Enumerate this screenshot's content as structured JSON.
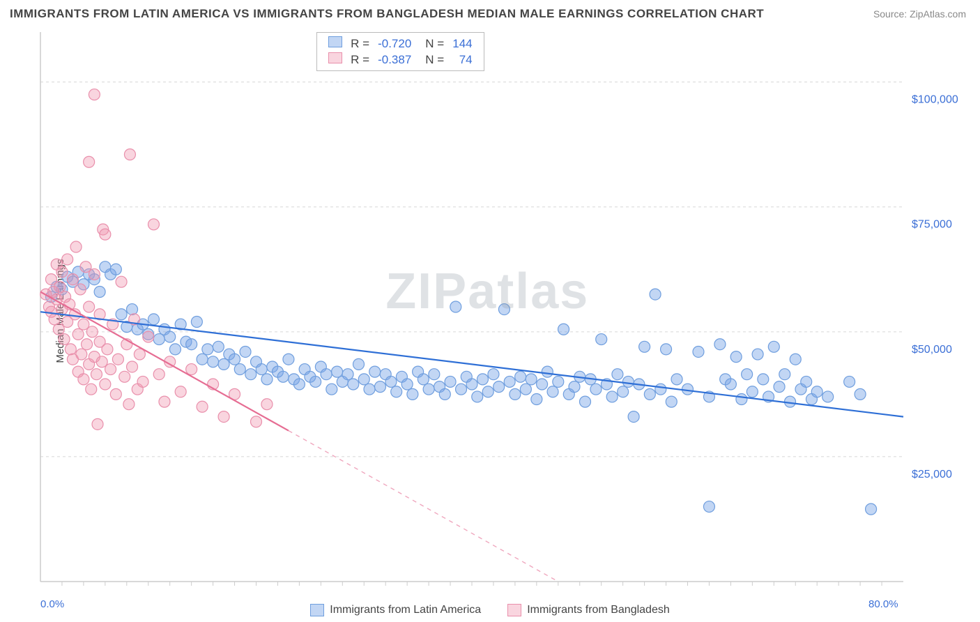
{
  "title": "IMMIGRANTS FROM LATIN AMERICA VS IMMIGRANTS FROM BANGLADESH MEDIAN MALE EARNINGS CORRELATION CHART",
  "source_prefix": "Source: ",
  "source_name": "ZipAtlas.com",
  "y_axis_label": "Median Male Earnings",
  "watermark_a": "ZIP",
  "watermark_b": "atlas",
  "chart": {
    "type": "scatter",
    "xlim": [
      0,
      80
    ],
    "ylim": [
      0,
      110000
    ],
    "x_ticks_minor": [
      2,
      4,
      6,
      8,
      10,
      12,
      14,
      16,
      18,
      20,
      22,
      24,
      26,
      28,
      30,
      32,
      34,
      36,
      38,
      40,
      42,
      44,
      46,
      48,
      50,
      52,
      54,
      56,
      58,
      60,
      62,
      64,
      66,
      68,
      70,
      72,
      74,
      76,
      78
    ],
    "x_tick_labels": [
      {
        "pos": 0,
        "label": "0.0%"
      },
      {
        "pos": 80,
        "label": "80.0%"
      }
    ],
    "y_gridlines": [
      25000,
      50000,
      75000,
      100000
    ],
    "y_tick_labels": [
      {
        "pos": 25000,
        "label": "$25,000"
      },
      {
        "pos": 50000,
        "label": "$50,000"
      },
      {
        "pos": 75000,
        "label": "$75,000"
      },
      {
        "pos": 100000,
        "label": "$100,000"
      }
    ],
    "background_color": "#ffffff",
    "grid_color": "#d8d8d8",
    "axis_color": "#cccccc",
    "tick_label_color": "#3b6fd6",
    "marker_radius": 8,
    "marker_stroke_width": 1.2,
    "series": [
      {
        "name": "Immigrants from Latin America",
        "fill": "rgba(120,165,230,0.45)",
        "stroke": "#6f9ede",
        "line_color": "#2e6fd6",
        "regression": {
          "x1": 0,
          "y1": 54000,
          "x2": 80,
          "y2": 33000,
          "solid_to_x": 80
        },
        "points": [
          [
            1,
            57000
          ],
          [
            1.5,
            59000
          ],
          [
            2,
            58500
          ],
          [
            2.5,
            61000
          ],
          [
            3,
            60000
          ],
          [
            3.5,
            62000
          ],
          [
            4,
            59500
          ],
          [
            4.5,
            61500
          ],
          [
            5,
            60500
          ],
          [
            5.5,
            58000
          ],
          [
            6,
            63000
          ],
          [
            6.5,
            61500
          ],
          [
            7,
            62500
          ],
          [
            7.5,
            53500
          ],
          [
            8,
            51000
          ],
          [
            8.5,
            54500
          ],
          [
            9,
            50500
          ],
          [
            9.5,
            51500
          ],
          [
            10,
            49500
          ],
          [
            10.5,
            52500
          ],
          [
            11,
            48500
          ],
          [
            11.5,
            50500
          ],
          [
            12,
            49000
          ],
          [
            12.5,
            46500
          ],
          [
            13,
            51500
          ],
          [
            13.5,
            48000
          ],
          [
            14,
            47500
          ],
          [
            14.5,
            52000
          ],
          [
            15,
            44500
          ],
          [
            15.5,
            46500
          ],
          [
            16,
            44000
          ],
          [
            16.5,
            47000
          ],
          [
            17,
            43500
          ],
          [
            17.5,
            45500
          ],
          [
            18,
            44500
          ],
          [
            18.5,
            42500
          ],
          [
            19,
            46000
          ],
          [
            19.5,
            41500
          ],
          [
            20,
            44000
          ],
          [
            20.5,
            42500
          ],
          [
            21,
            40500
          ],
          [
            21.5,
            43000
          ],
          [
            22,
            42000
          ],
          [
            22.5,
            41000
          ],
          [
            23,
            44500
          ],
          [
            23.5,
            40500
          ],
          [
            24,
            39500
          ],
          [
            24.5,
            42500
          ],
          [
            25,
            41000
          ],
          [
            25.5,
            40000
          ],
          [
            26,
            43000
          ],
          [
            26.5,
            41500
          ],
          [
            27,
            38500
          ],
          [
            27.5,
            42000
          ],
          [
            28,
            40000
          ],
          [
            28.5,
            41500
          ],
          [
            29,
            39500
          ],
          [
            29.5,
            43500
          ],
          [
            30,
            40500
          ],
          [
            30.5,
            38500
          ],
          [
            31,
            42000
          ],
          [
            31.5,
            39000
          ],
          [
            32,
            41500
          ],
          [
            32.5,
            40000
          ],
          [
            33,
            38000
          ],
          [
            33.5,
            41000
          ],
          [
            34,
            39500
          ],
          [
            34.5,
            37500
          ],
          [
            35,
            42000
          ],
          [
            35.5,
            40500
          ],
          [
            36,
            38500
          ],
          [
            36.5,
            41500
          ],
          [
            37,
            39000
          ],
          [
            37.5,
            37500
          ],
          [
            38,
            40000
          ],
          [
            38.5,
            55000
          ],
          [
            39,
            38500
          ],
          [
            39.5,
            41000
          ],
          [
            40,
            39500
          ],
          [
            40.5,
            37000
          ],
          [
            41,
            40500
          ],
          [
            41.5,
            38000
          ],
          [
            42,
            41500
          ],
          [
            42.5,
            39000
          ],
          [
            43,
            54500
          ],
          [
            43.5,
            40000
          ],
          [
            44,
            37500
          ],
          [
            44.5,
            41000
          ],
          [
            45,
            38500
          ],
          [
            45.5,
            40500
          ],
          [
            46,
            36500
          ],
          [
            46.5,
            39500
          ],
          [
            47,
            42000
          ],
          [
            47.5,
            38000
          ],
          [
            48,
            40000
          ],
          [
            48.5,
            50500
          ],
          [
            49,
            37500
          ],
          [
            49.5,
            39000
          ],
          [
            50,
            41000
          ],
          [
            50.5,
            36000
          ],
          [
            51,
            40500
          ],
          [
            51.5,
            38500
          ],
          [
            52,
            48500
          ],
          [
            52.5,
            39500
          ],
          [
            53,
            37000
          ],
          [
            53.5,
            41500
          ],
          [
            54,
            38000
          ],
          [
            54.5,
            40000
          ],
          [
            55,
            33000
          ],
          [
            55.5,
            39500
          ],
          [
            56,
            47000
          ],
          [
            56.5,
            37500
          ],
          [
            57,
            57500
          ],
          [
            57.5,
            38500
          ],
          [
            58,
            46500
          ],
          [
            58.5,
            36000
          ],
          [
            59,
            40500
          ],
          [
            60,
            38500
          ],
          [
            61,
            46000
          ],
          [
            62,
            37000
          ],
          [
            63,
            47500
          ],
          [
            63.5,
            40500
          ],
          [
            64,
            39500
          ],
          [
            64.5,
            45000
          ],
          [
            65,
            36500
          ],
          [
            65.5,
            41500
          ],
          [
            66,
            38000
          ],
          [
            66.5,
            45500
          ],
          [
            67,
            40500
          ],
          [
            67.5,
            37000
          ],
          [
            68,
            47000
          ],
          [
            68.5,
            39000
          ],
          [
            69,
            41500
          ],
          [
            69.5,
            36000
          ],
          [
            70,
            44500
          ],
          [
            70.5,
            38500
          ],
          [
            71,
            40000
          ],
          [
            71.5,
            36500
          ],
          [
            72,
            38000
          ],
          [
            73,
            37000
          ],
          [
            62,
            15000
          ],
          [
            77,
            14500
          ],
          [
            75,
            40000
          ],
          [
            76,
            37500
          ]
        ]
      },
      {
        "name": "Immigrants from Bangladesh",
        "fill": "rgba(240,150,175,0.40)",
        "stroke": "#e98fab",
        "line_color": "#e66d93",
        "regression": {
          "x1": 0,
          "y1": 58000,
          "x2": 48,
          "y2": 0,
          "solid_to_x": 23
        },
        "points": [
          [
            0.5,
            57500
          ],
          [
            0.8,
            55000
          ],
          [
            1,
            60500
          ],
          [
            1,
            54000
          ],
          [
            1.2,
            58000
          ],
          [
            1.3,
            52500
          ],
          [
            1.5,
            63500
          ],
          [
            1.5,
            56500
          ],
          [
            1.7,
            50500
          ],
          [
            1.8,
            59000
          ],
          [
            2,
            54500
          ],
          [
            2,
            62000
          ],
          [
            2.2,
            48500
          ],
          [
            2.3,
            57000
          ],
          [
            2.5,
            64500
          ],
          [
            2.5,
            52000
          ],
          [
            2.7,
            55500
          ],
          [
            2.8,
            46500
          ],
          [
            3,
            60500
          ],
          [
            3,
            44500
          ],
          [
            3.2,
            53500
          ],
          [
            3.3,
            67000
          ],
          [
            3.5,
            49500
          ],
          [
            3.5,
            42000
          ],
          [
            3.7,
            58500
          ],
          [
            3.8,
            45500
          ],
          [
            4,
            51500
          ],
          [
            4,
            40500
          ],
          [
            4.2,
            63000
          ],
          [
            4.3,
            47500
          ],
          [
            4.5,
            43500
          ],
          [
            4.5,
            55000
          ],
          [
            4.7,
            38500
          ],
          [
            4.8,
            50000
          ],
          [
            5,
            45000
          ],
          [
            5,
            61500
          ],
          [
            5.2,
            41500
          ],
          [
            5.3,
            31500
          ],
          [
            5.5,
            48000
          ],
          [
            5.5,
            53500
          ],
          [
            5.7,
            44000
          ],
          [
            5.8,
            70500
          ],
          [
            6,
            39500
          ],
          [
            6,
            69500
          ],
          [
            6.2,
            46500
          ],
          [
            6.5,
            42500
          ],
          [
            6.7,
            51500
          ],
          [
            7,
            37500
          ],
          [
            7.2,
            44500
          ],
          [
            7.5,
            60000
          ],
          [
            7.8,
            41000
          ],
          [
            8,
            47500
          ],
          [
            8.2,
            35500
          ],
          [
            8.3,
            85500
          ],
          [
            8.5,
            43000
          ],
          [
            8.7,
            52500
          ],
          [
            9,
            38500
          ],
          [
            9.2,
            45500
          ],
          [
            9.5,
            40000
          ],
          [
            10,
            49000
          ],
          [
            10.5,
            71500
          ],
          [
            11,
            41500
          ],
          [
            11.5,
            36000
          ],
          [
            12,
            44000
          ],
          [
            13,
            38000
          ],
          [
            14,
            42500
          ],
          [
            15,
            35000
          ],
          [
            16,
            39500
          ],
          [
            17,
            33000
          ],
          [
            18,
            37500
          ],
          [
            20,
            32000
          ],
          [
            21,
            35500
          ],
          [
            5,
            97500
          ],
          [
            4.5,
            84000
          ]
        ]
      }
    ]
  },
  "stats": {
    "header_r": "R =",
    "header_n": "N =",
    "rows": [
      {
        "swatch_fill": "rgba(120,165,230,0.45)",
        "swatch_stroke": "#6f9ede",
        "r": "-0.720",
        "n": "144"
      },
      {
        "swatch_fill": "rgba(240,150,175,0.40)",
        "swatch_stroke": "#e98fab",
        "r": "-0.387",
        "n": "74"
      }
    ]
  },
  "legend": [
    {
      "label": "Immigrants from Latin America",
      "fill": "rgba(120,165,230,0.45)",
      "stroke": "#6f9ede"
    },
    {
      "label": "Immigrants from Bangladesh",
      "fill": "rgba(240,150,175,0.40)",
      "stroke": "#e98fab"
    }
  ]
}
